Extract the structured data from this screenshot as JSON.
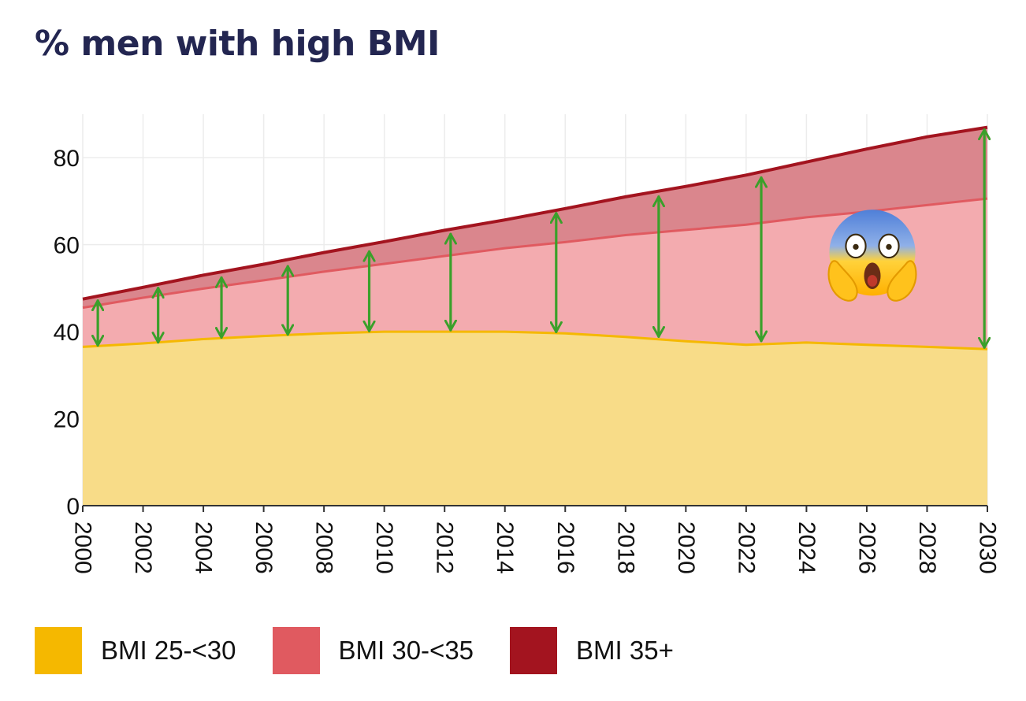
{
  "chart_data": {
    "type": "area",
    "stacked": true,
    "title": "% men with high BMI",
    "xlabel": "",
    "ylabel": "",
    "xlim": [
      2000,
      2030
    ],
    "ylim": [
      0,
      90
    ],
    "x_ticks": [
      "2000",
      "2002",
      "2004",
      "2006",
      "2008",
      "2010",
      "2012",
      "2014",
      "2016",
      "2018",
      "2020",
      "2022",
      "2024",
      "2026",
      "2028",
      "2030"
    ],
    "y_ticks": [
      0,
      20,
      40,
      60,
      80
    ],
    "x": [
      2000,
      2002,
      2004,
      2006,
      2008,
      2010,
      2012,
      2014,
      2016,
      2018,
      2020,
      2022,
      2024,
      2026,
      2028,
      2030
    ],
    "series": [
      {
        "name": "BMI 25-<30",
        "color": "#f5b800",
        "fill": "#f8db86",
        "values": [
          36.5,
          37.3,
          38.3,
          39.0,
          39.6,
          40.0,
          40.0,
          40.0,
          39.6,
          38.8,
          37.8,
          37.0,
          37.5,
          37.0,
          36.5,
          36.0
        ]
      },
      {
        "name": "BMI 30-<35",
        "color": "#e05a60",
        "fill": "#f3a9ad",
        "values": [
          9.0,
          10.5,
          11.6,
          12.8,
          14.2,
          15.6,
          17.4,
          19.2,
          21.0,
          23.4,
          25.6,
          27.6,
          28.8,
          30.6,
          32.6,
          34.6
        ]
      },
      {
        "name": "BMI 35+",
        "color": "#a3141f",
        "fill": "#d9848b",
        "values": [
          2.0,
          2.4,
          3.1,
          3.7,
          4.4,
          5.1,
          5.9,
          6.5,
          7.7,
          8.8,
          10.0,
          11.4,
          12.7,
          14.4,
          15.7,
          16.4
        ]
      }
    ],
    "annotations": {
      "arrows": {
        "color": "#3aa02a",
        "marks": [
          {
            "year": 2000.5,
            "low": 36.5,
            "high": 47.5
          },
          {
            "year": 2002.5,
            "low": 37.2,
            "high": 50.4
          },
          {
            "year": 2004.6,
            "low": 38.3,
            "high": 52.8
          },
          {
            "year": 2006.8,
            "low": 39.0,
            "high": 55.4
          },
          {
            "year": 2009.5,
            "low": 39.8,
            "high": 58.8
          },
          {
            "year": 2012.2,
            "low": 40.0,
            "high": 62.8
          },
          {
            "year": 2015.7,
            "low": 39.6,
            "high": 67.6
          },
          {
            "year": 2019.1,
            "low": 38.5,
            "high": 71.4
          },
          {
            "year": 2022.5,
            "low": 37.5,
            "high": 75.8
          },
          {
            "year": 2029.9,
            "low": 36.0,
            "high": 86.8
          }
        ]
      },
      "emoji": "scream"
    },
    "legend_position": "bottom-left",
    "grid": true
  }
}
